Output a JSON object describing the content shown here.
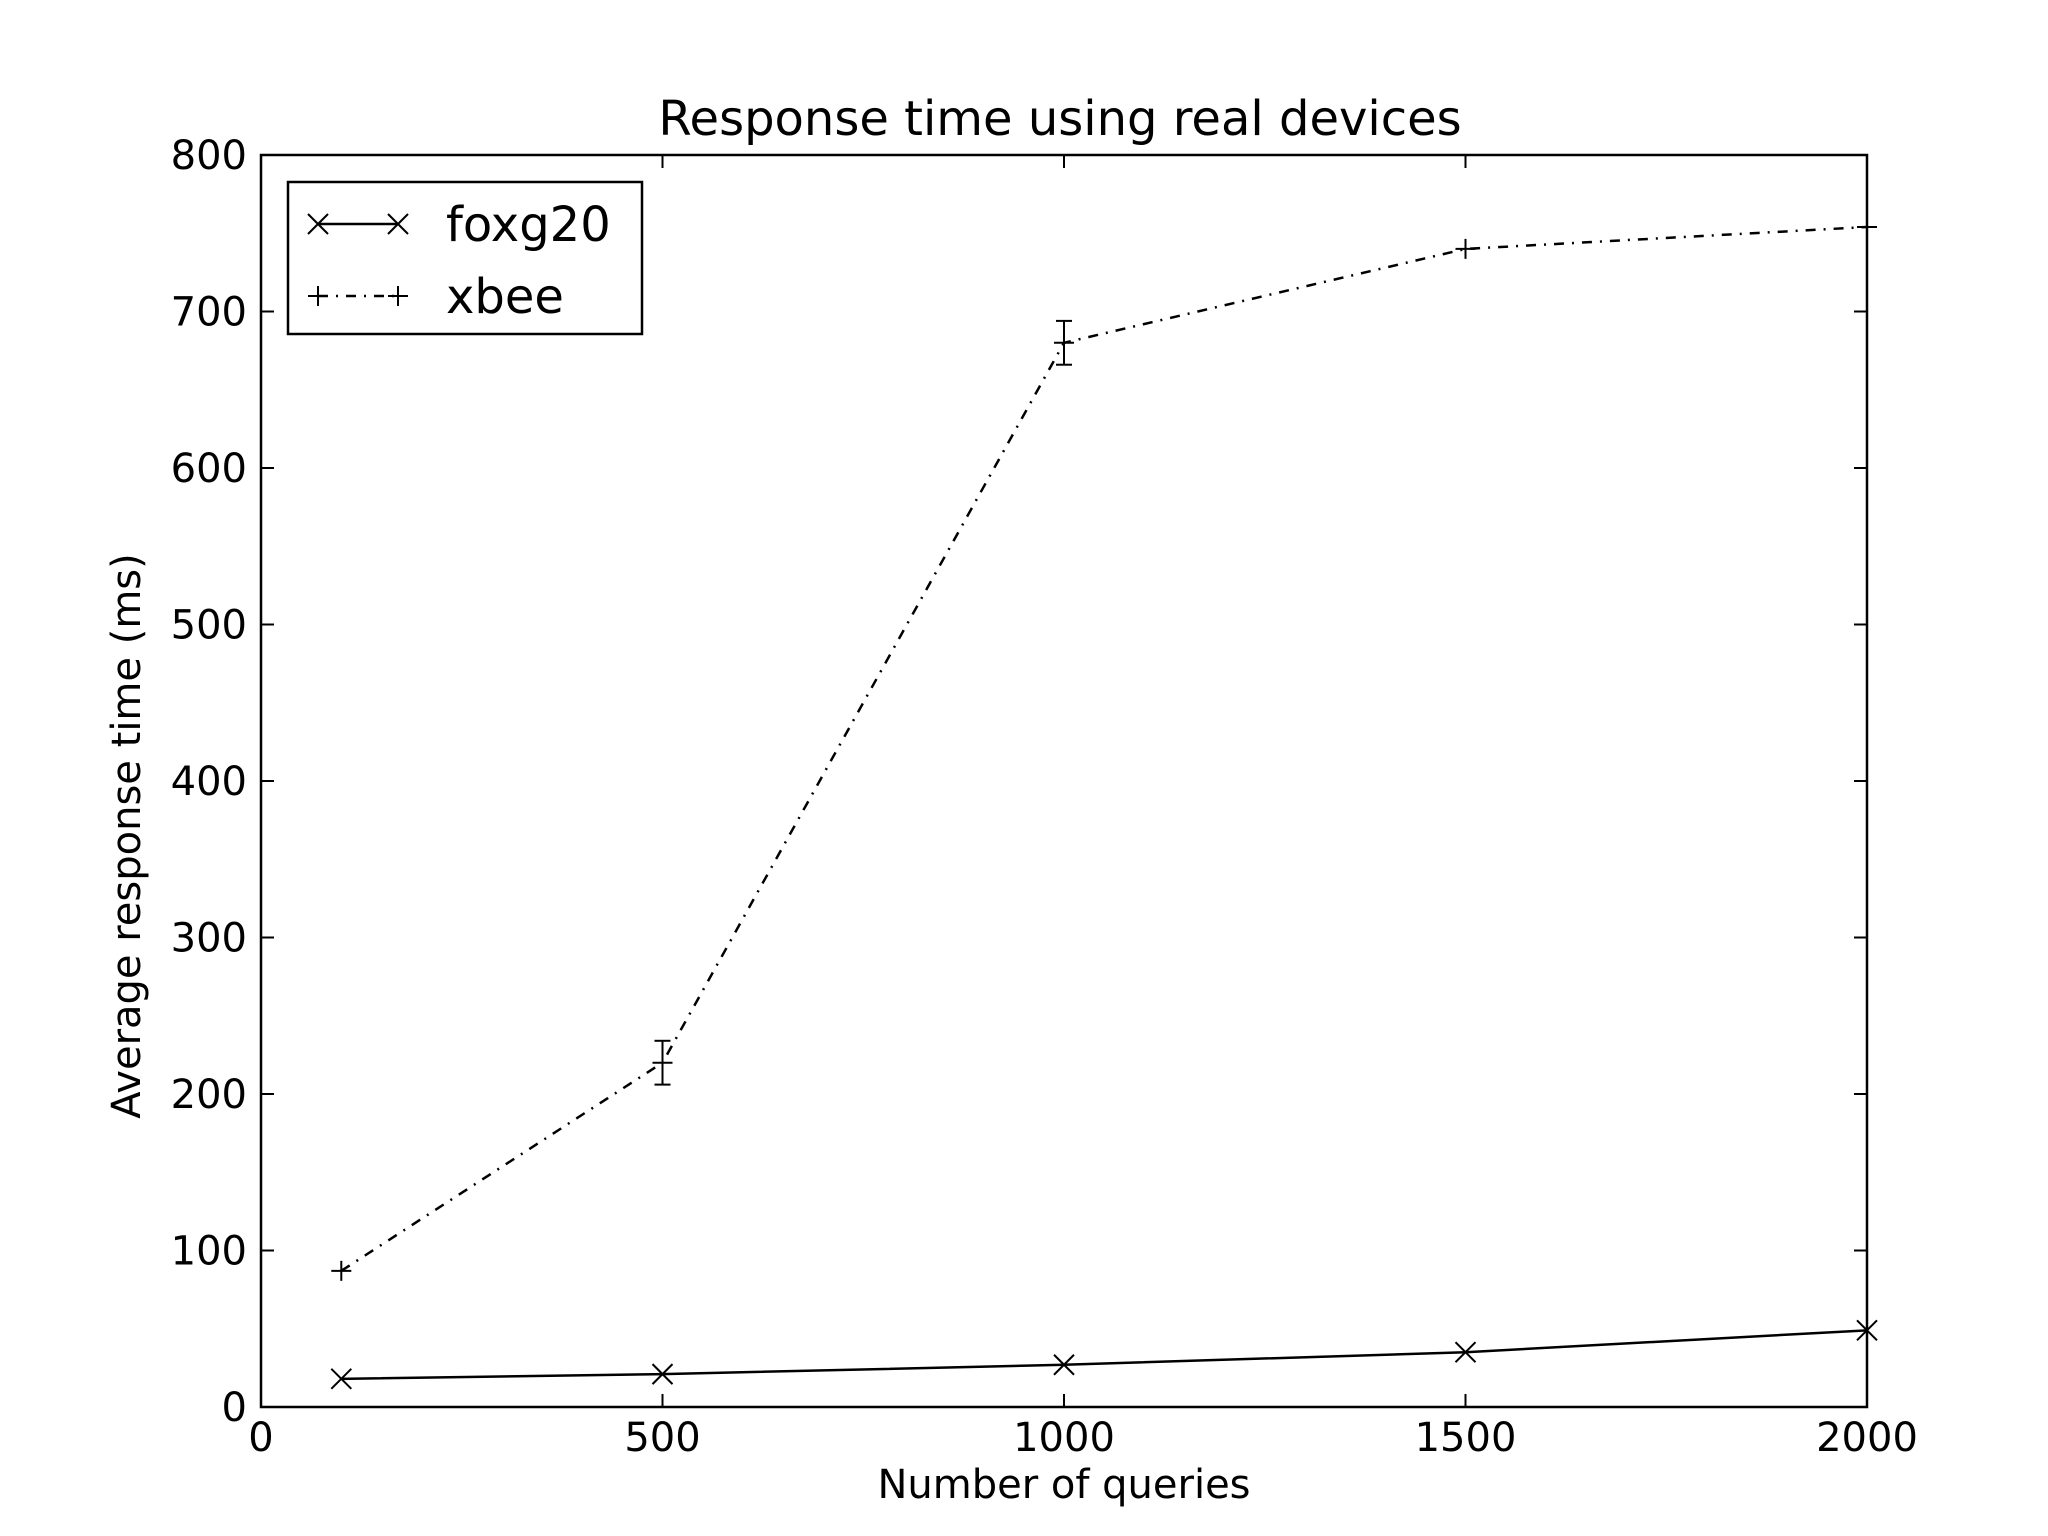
{
  "chart_data": {
    "type": "line",
    "title": "Response time using real devices",
    "xlabel": "Number of queries",
    "ylabel": "Average response time (ms)",
    "xlim": [
      0,
      2000
    ],
    "ylim": [
      0,
      800
    ],
    "x_ticks": [
      "0",
      "500",
      "1000",
      "1500",
      "2000"
    ],
    "y_ticks": [
      "0",
      "100",
      "200",
      "300",
      "400",
      "500",
      "600",
      "700",
      "800"
    ],
    "grid": false,
    "legend_position": "top-left",
    "series": [
      {
        "name": "foxg20",
        "style": "solid",
        "marker": "x",
        "color": "#000000",
        "x": [
          100,
          500,
          1000,
          1500,
          2000
        ],
        "y": [
          18,
          21,
          27,
          35,
          49
        ]
      },
      {
        "name": "xbee",
        "style": "dash-dot",
        "marker": "+",
        "color": "#000000",
        "x": [
          100,
          500,
          1000,
          1500,
          2000
        ],
        "y": [
          87,
          220,
          680,
          740,
          754
        ],
        "error": [
          2,
          14,
          14,
          2,
          2
        ]
      }
    ]
  }
}
